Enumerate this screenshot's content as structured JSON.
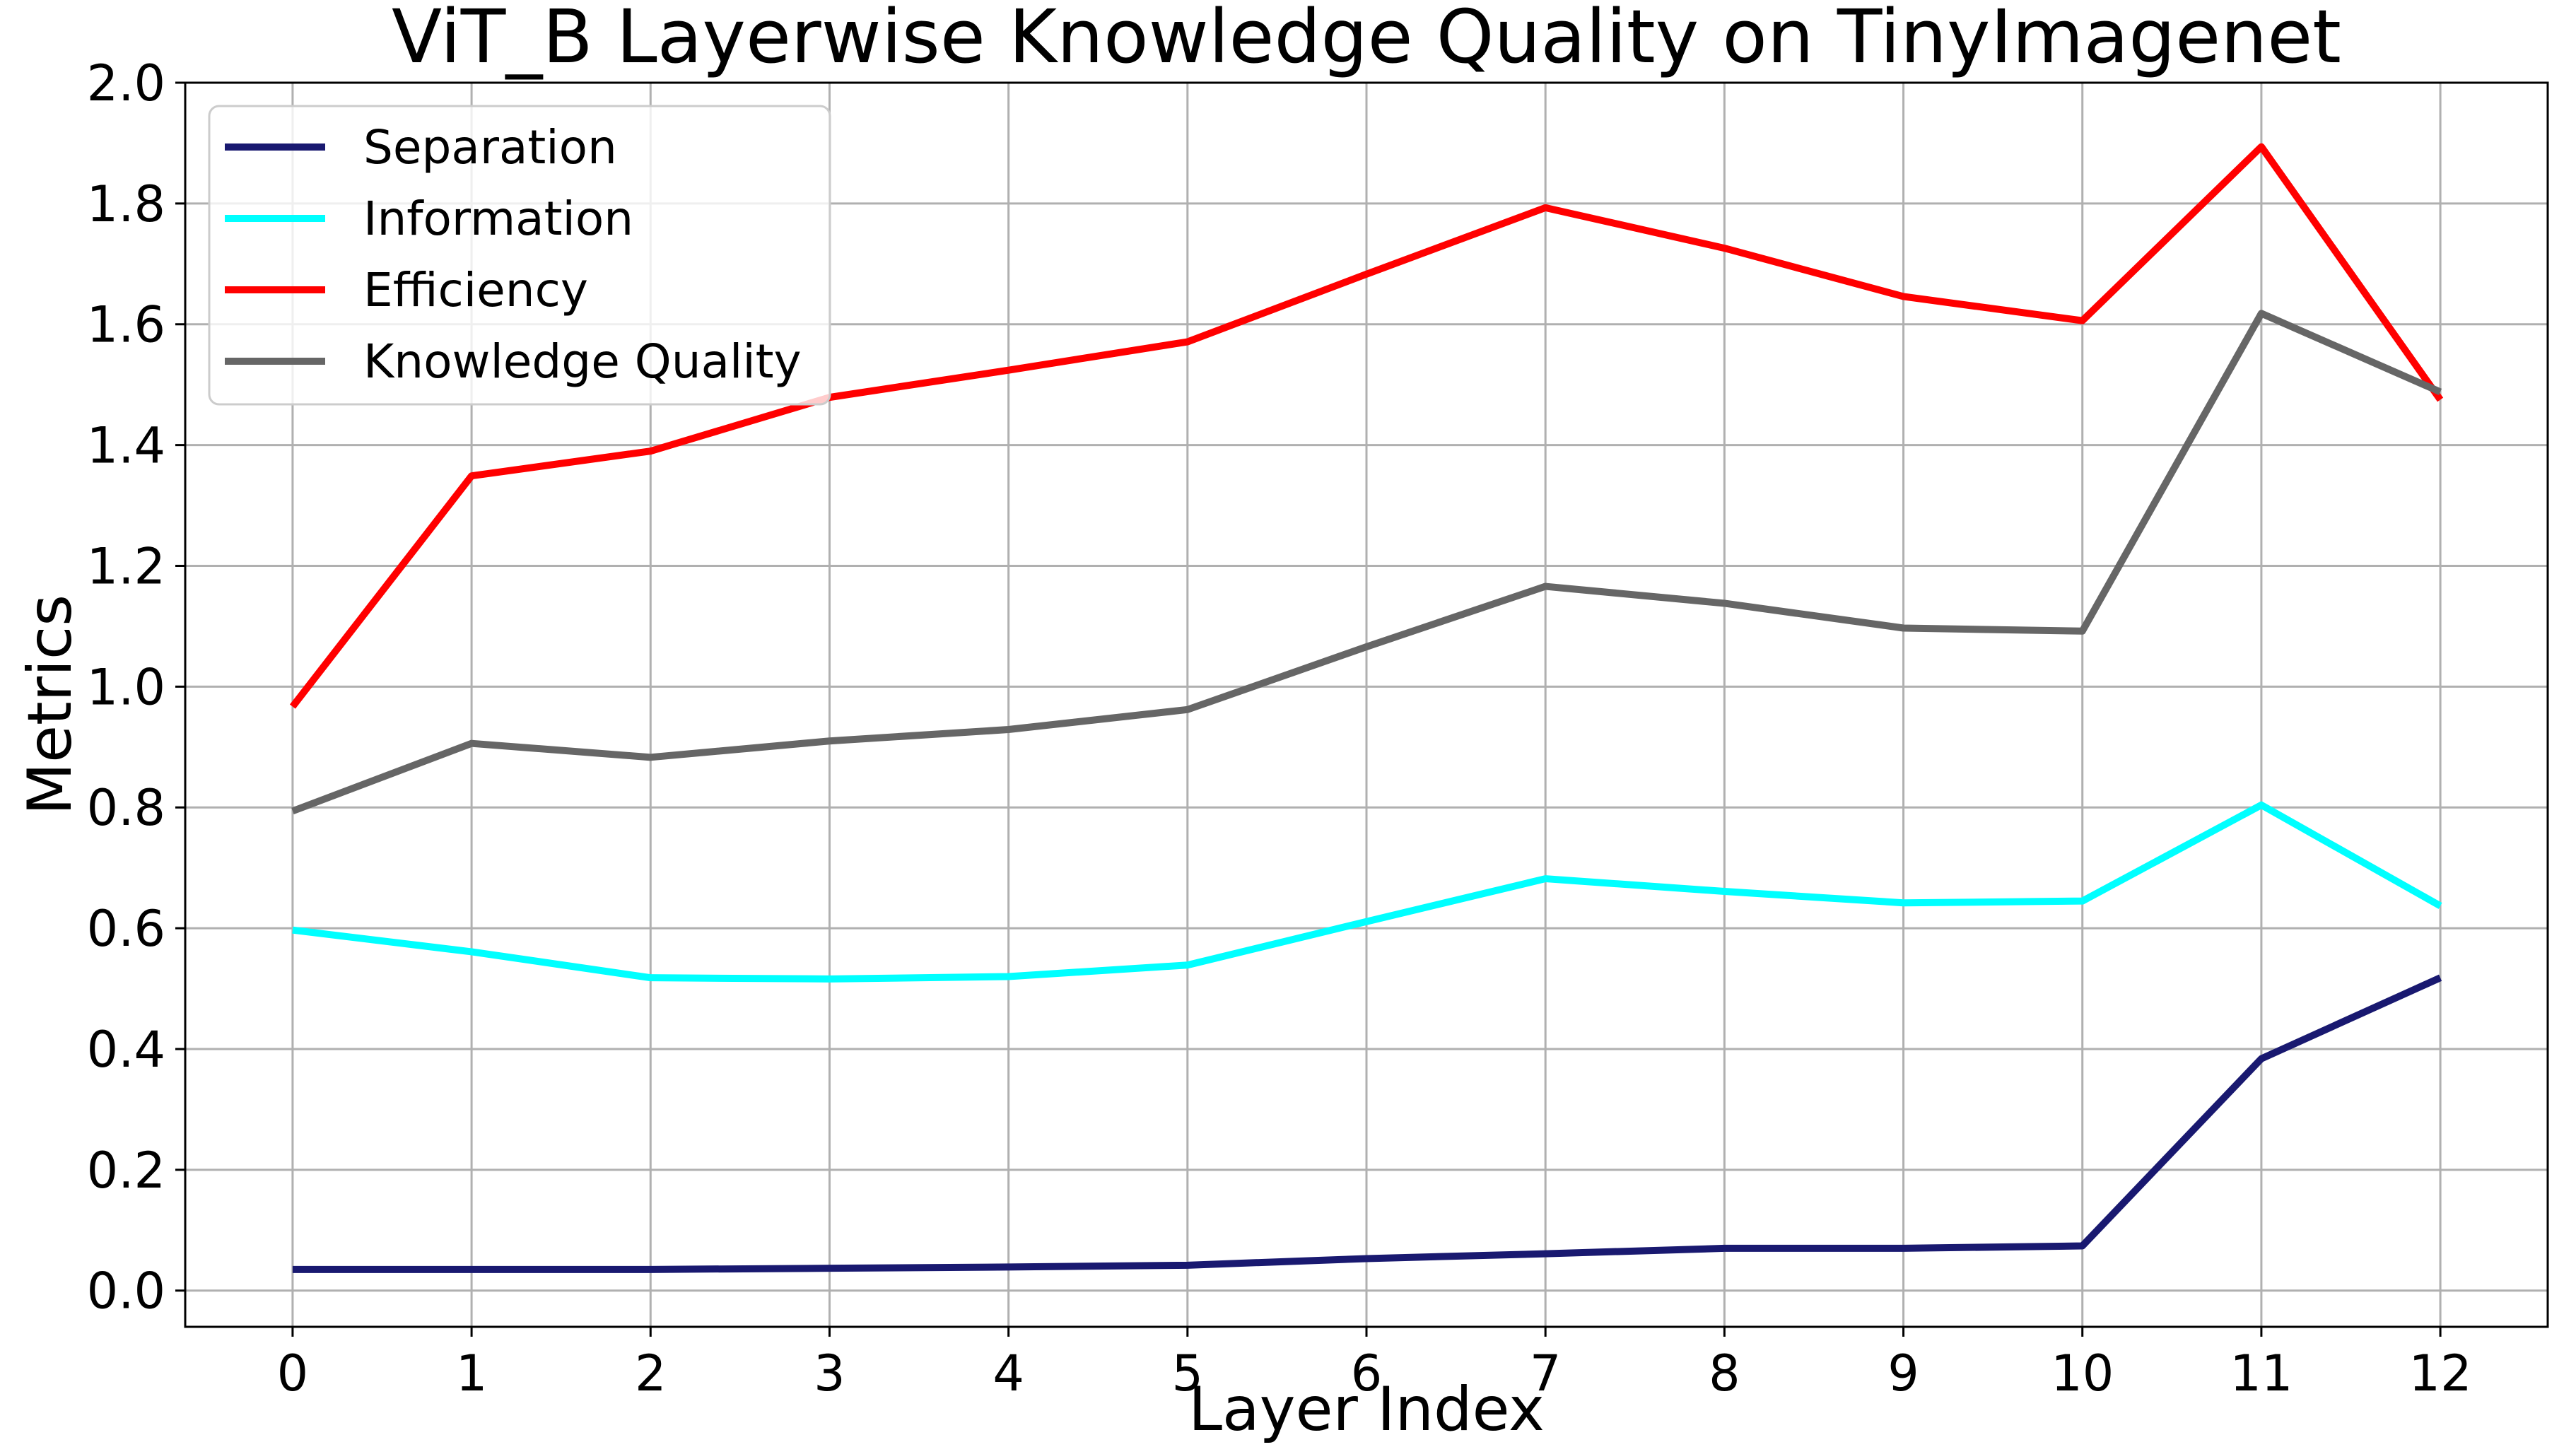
{
  "chart_data": {
    "type": "line",
    "title": "ViT_B Layerwise Knowledge Quality on TinyImagenet",
    "xlabel": "Layer Index",
    "ylabel": "Metrics",
    "x": [
      0,
      1,
      2,
      3,
      4,
      5,
      6,
      7,
      8,
      9,
      10,
      11,
      12
    ],
    "x_tick_labels": [
      "0",
      "1",
      "2",
      "3",
      "4",
      "5",
      "6",
      "7",
      "8",
      "9",
      "10",
      "11",
      "12"
    ],
    "ylim": [
      -0.06,
      2.0
    ],
    "y_ticks": [
      0.0,
      0.2,
      0.4,
      0.6,
      0.8,
      1.0,
      1.2,
      1.4,
      1.6,
      1.8,
      2.0
    ],
    "y_tick_labels": [
      "0.0",
      "0.2",
      "0.4",
      "0.6",
      "0.8",
      "1.0",
      "1.2",
      "1.4",
      "1.6",
      "1.8",
      "2.0"
    ],
    "grid": true,
    "legend_position": "top-left",
    "series": [
      {
        "name": "Separation",
        "color": "#191970",
        "values": [
          0.035,
          0.035,
          0.035,
          0.037,
          0.039,
          0.042,
          0.053,
          0.061,
          0.07,
          0.07,
          0.074,
          0.384,
          0.518
        ]
      },
      {
        "name": "Information",
        "color": "#00ffff",
        "values": [
          0.597,
          0.561,
          0.518,
          0.516,
          0.52,
          0.539,
          0.611,
          0.682,
          0.661,
          0.642,
          0.645,
          0.804,
          0.637
        ]
      },
      {
        "name": "Efficiency",
        "color": "#ff0000",
        "values": [
          0.967,
          1.349,
          1.39,
          1.479,
          1.524,
          1.571,
          1.683,
          1.793,
          1.726,
          1.646,
          1.606,
          1.894,
          1.475
        ]
      },
      {
        "name": "Knowledge Quality",
        "color": "#666666",
        "values": [
          0.794,
          0.906,
          0.883,
          0.91,
          0.929,
          0.962,
          1.066,
          1.166,
          1.138,
          1.097,
          1.092,
          1.618,
          1.488
        ]
      }
    ]
  }
}
